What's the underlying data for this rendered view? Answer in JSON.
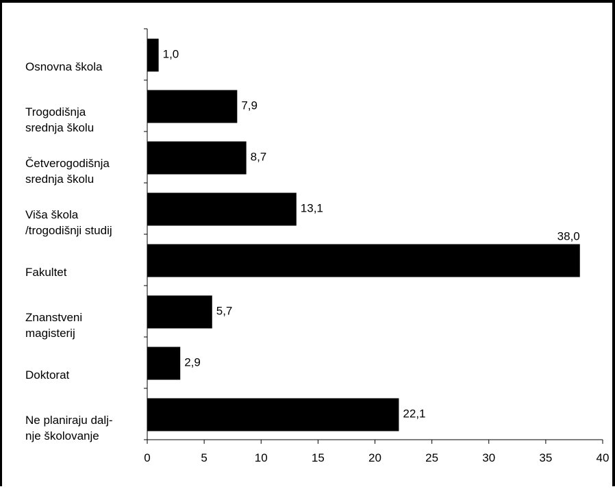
{
  "chart_data": {
    "type": "bar",
    "orientation": "horizontal",
    "title": "",
    "xlabel": "",
    "ylabel": "",
    "categories": [
      [
        "Osnovna škola"
      ],
      [
        "Trogodišnja",
        "srednja školu"
      ],
      [
        "Četverogodišnja",
        "srednja školu"
      ],
      [
        "Viša škola",
        "/trogodišnji studij"
      ],
      [
        "Fakultet"
      ],
      [
        "Znanstveni",
        "magisterij"
      ],
      [
        "Doktorat"
      ],
      [
        "Ne planiraju dalj-",
        "nje školovanje"
      ]
    ],
    "values": [
      1.0,
      7.9,
      8.7,
      13.1,
      38.0,
      5.7,
      2.9,
      22.1
    ],
    "value_labels": [
      "1,0",
      "7,9",
      "8,7",
      "13,1",
      "38,0",
      "5,7",
      "2,9",
      "22,1"
    ],
    "xlim": [
      0,
      40
    ],
    "xticks": [
      0,
      5,
      10,
      15,
      20,
      25,
      30,
      35,
      40
    ],
    "grid": false,
    "legend": "none",
    "bar_color": "#000000"
  }
}
